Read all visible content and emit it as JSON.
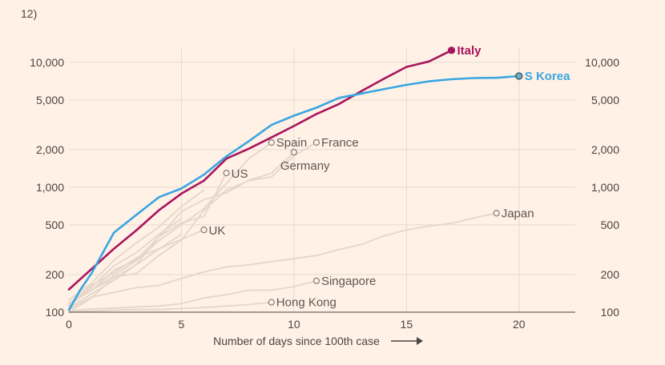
{
  "page": {
    "header_fragment": "12)",
    "bg_color": "#fff1e5"
  },
  "chart_data": {
    "type": "line",
    "xlabel": "Number of days since 100th case",
    "xlabel_arrow": "arrow-right-icon",
    "y_scale": "log",
    "xlim": [
      0,
      22.5
    ],
    "ylim": [
      100,
      13000
    ],
    "x_ticks": [
      0,
      5,
      10,
      15,
      20
    ],
    "x_tick_labels": [
      "0",
      "5",
      "10",
      "15",
      "20"
    ],
    "y_ticks": [
      100,
      200,
      500,
      1000,
      2000,
      5000,
      10000
    ],
    "y_tick_labels": [
      "100",
      "200",
      "500",
      "1,000",
      "2,000",
      "5,000",
      "10,000"
    ],
    "grid": true,
    "colors": {
      "highlight_italy": "#a8155e",
      "highlight_korea": "#3aa6e2",
      "background_series": "#e4d6c9",
      "grid": "#e6d9ce"
    },
    "series": [
      {
        "name": "Italy",
        "highlight": true,
        "x": [
          0,
          1,
          2,
          3,
          4,
          5,
          6,
          7,
          8,
          9,
          10,
          11,
          12,
          13,
          14,
          15,
          16,
          17
        ],
        "y": [
          152,
          221,
          322,
          453,
          655,
          888,
          1128,
          1694,
          2036,
          2502,
          3089,
          3858,
          4636,
          5883,
          7375,
          9172,
          10149,
          12462
        ]
      },
      {
        "name": "S Korea",
        "highlight": true,
        "x": [
          0,
          0.5,
          1,
          2,
          3,
          4,
          5,
          6,
          7,
          8,
          9,
          10,
          11,
          12,
          13,
          14,
          15,
          16,
          17,
          18,
          19,
          20
        ],
        "y": [
          104,
          150,
          204,
          433,
          602,
          833,
          977,
          1261,
          1766,
          2337,
          3150,
          3736,
          4335,
          5186,
          5621,
          6088,
          6593,
          7041,
          7313,
          7478,
          7513,
          7755
        ]
      },
      {
        "name": "Spain",
        "x": [
          0,
          1,
          2,
          3,
          4,
          5,
          6,
          7,
          8,
          9
        ],
        "y": [
          114,
          151,
          198,
          258,
          374,
          500,
          673,
          1073,
          1695,
          2277
        ]
      },
      {
        "name": "France",
        "x": [
          0,
          1,
          2,
          3,
          4,
          5,
          6,
          7,
          8,
          9,
          10,
          11
        ],
        "y": [
          100,
          130,
          191,
          204,
          285,
          377,
          653,
          949,
          1126,
          1209,
          1784,
          2281
        ]
      },
      {
        "name": "Germany",
        "x": [
          0,
          1,
          2,
          3,
          4,
          5,
          6,
          7,
          8,
          9,
          10
        ],
        "y": [
          117,
          150,
          188,
          240,
          400,
          639,
          795,
          902,
          1139,
          1296,
          1908
        ]
      },
      {
        "name": "US",
        "x": [
          0,
          1,
          2,
          3,
          4,
          5,
          6,
          7
        ],
        "y": [
          118,
          149,
          217,
          262,
          402,
          518,
          583,
          1300
        ]
      },
      {
        "name": "UK",
        "x": [
          0,
          1,
          2,
          3,
          4,
          5,
          6
        ],
        "y": [
          116,
          164,
          207,
          273,
          321,
          382,
          456
        ]
      },
      {
        "name": "Japan",
        "x": [
          0,
          1,
          2,
          3,
          4,
          5,
          6,
          7,
          8,
          9,
          10,
          11,
          12,
          13,
          14,
          15,
          16,
          17,
          18,
          19
        ],
        "y": [
          105,
          132,
          144,
          157,
          164,
          186,
          210,
          230,
          239,
          254,
          268,
          284,
          317,
          349,
          408,
          455,
          488,
          514,
          568,
          620
        ]
      },
      {
        "name": "Singapore",
        "x": [
          0,
          1,
          2,
          3,
          4,
          5,
          6,
          7,
          8,
          9,
          10,
          11
        ],
        "y": [
          102,
          106,
          108,
          110,
          112,
          117,
          130,
          138,
          150,
          150,
          160,
          178
        ]
      },
      {
        "name": "Hong Kong",
        "x": [
          0,
          1,
          2,
          3,
          4,
          5,
          6,
          7,
          8,
          9
        ],
        "y": [
          100,
          102,
          104,
          105,
          105,
          107,
          109,
          112,
          115,
          120
        ]
      },
      {
        "x": [
          0,
          1,
          2,
          3,
          4,
          5
        ],
        "y": [
          112,
          158,
          235,
          300,
          420,
          560
        ]
      },
      {
        "x": [
          0,
          1,
          2,
          3,
          4,
          5
        ],
        "y": [
          108,
          140,
          180,
          240,
          320,
          420
        ]
      },
      {
        "x": [
          0,
          1,
          2,
          3,
          4,
          5,
          6
        ],
        "y": [
          125,
          170,
          260,
          360,
          480,
          700,
          950
        ]
      }
    ],
    "annotations": [
      {
        "text": "Italy",
        "series": "Italy",
        "style": "bold-magenta",
        "at": [
          17,
          12462
        ]
      },
      {
        "text": "S Korea",
        "series": "S Korea",
        "style": "bold-blue",
        "at": [
          20,
          7755
        ]
      },
      {
        "text": "Spain",
        "series": "Spain",
        "at": [
          9,
          2277
        ]
      },
      {
        "text": "France",
        "series": "France",
        "at": [
          11,
          2281
        ]
      },
      {
        "text": "Germany",
        "series": "Germany",
        "at": [
          10,
          1908
        ]
      },
      {
        "text": "US",
        "series": "US",
        "at": [
          7,
          1300
        ]
      },
      {
        "text": "UK",
        "series": "UK",
        "at": [
          6,
          456
        ]
      },
      {
        "text": "Japan",
        "series": "Japan",
        "at": [
          19,
          620
        ]
      },
      {
        "text": "Singapore",
        "series": "Singapore",
        "at": [
          11,
          178
        ]
      },
      {
        "text": "Hong Kong",
        "series": "Hong Kong",
        "at": [
          9,
          120
        ]
      }
    ]
  }
}
